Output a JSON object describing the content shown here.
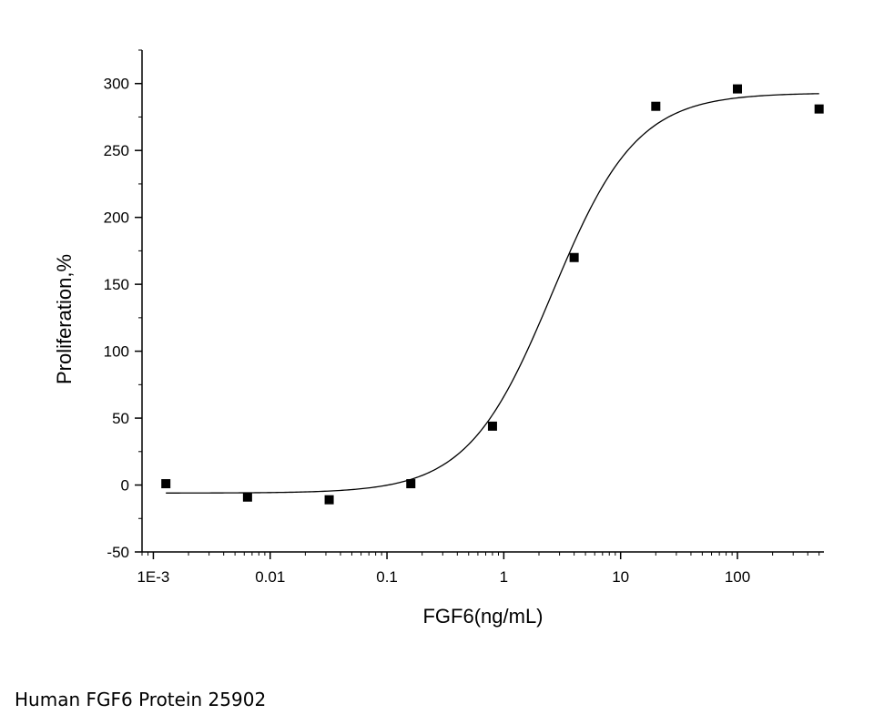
{
  "chart_data": {
    "type": "scatter",
    "x_scale": "log",
    "xlabel": "FGF6(ng/mL)",
    "ylabel": "Proliferation,%",
    "xlim": [
      0.0008,
      550
    ],
    "ylim": [
      -50,
      325
    ],
    "x_ticks": [
      {
        "value": 0.001,
        "label": "1E-3"
      },
      {
        "value": 0.01,
        "label": "0.01"
      },
      {
        "value": 0.1,
        "label": "0.1"
      },
      {
        "value": 1,
        "label": "1"
      },
      {
        "value": 10,
        "label": "10"
      },
      {
        "value": 100,
        "label": "100"
      }
    ],
    "y_ticks": [
      -50,
      0,
      50,
      100,
      150,
      200,
      250,
      300
    ],
    "points": [
      {
        "x": 0.00128,
        "y": 1
      },
      {
        "x": 0.0064,
        "y": -9
      },
      {
        "x": 0.032,
        "y": -11
      },
      {
        "x": 0.16,
        "y": 1
      },
      {
        "x": 0.8,
        "y": 44
      },
      {
        "x": 4,
        "y": 170
      },
      {
        "x": 20,
        "y": 283
      },
      {
        "x": 100,
        "y": 296
      },
      {
        "x": 500,
        "y": 281
      }
    ],
    "fit_curve": {
      "model": "4PL",
      "bottom": -6,
      "top": 293,
      "ec50": 2.6,
      "hill": 1.2,
      "x_range": [
        0.00128,
        500
      ]
    },
    "grid": false,
    "legend": "none",
    "colors": {
      "marker": "#000000",
      "curve": "#000000",
      "axis": "#000000"
    }
  },
  "caption": "Human FGF6 Protein 25902"
}
